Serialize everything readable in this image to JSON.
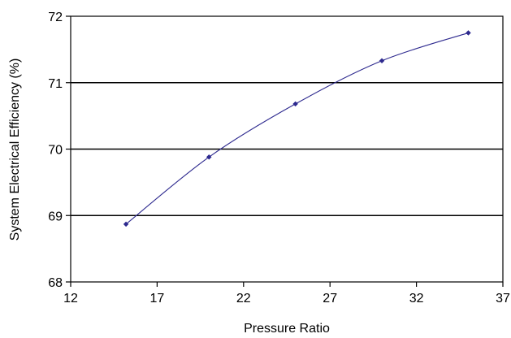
{
  "chart_data": {
    "type": "line",
    "title": "",
    "xlabel": "Pressure Ratio",
    "ylabel": "System Electrical Efficiency (%)",
    "xlim": [
      12,
      37
    ],
    "ylim": [
      68,
      72
    ],
    "x_ticks": [
      12,
      17,
      22,
      27,
      32,
      37
    ],
    "y_ticks": [
      68,
      69,
      70,
      71,
      72
    ],
    "horizontal_grid": true,
    "vertical_grid": false,
    "legend": "none",
    "line_style": "smoothed",
    "series": [
      {
        "x": [
          15.2,
          20,
          25,
          30,
          35
        ],
        "y": [
          68.87,
          69.88,
          70.68,
          71.33,
          71.75
        ],
        "color": "#2e2a8f",
        "marker": "diamond"
      }
    ]
  }
}
